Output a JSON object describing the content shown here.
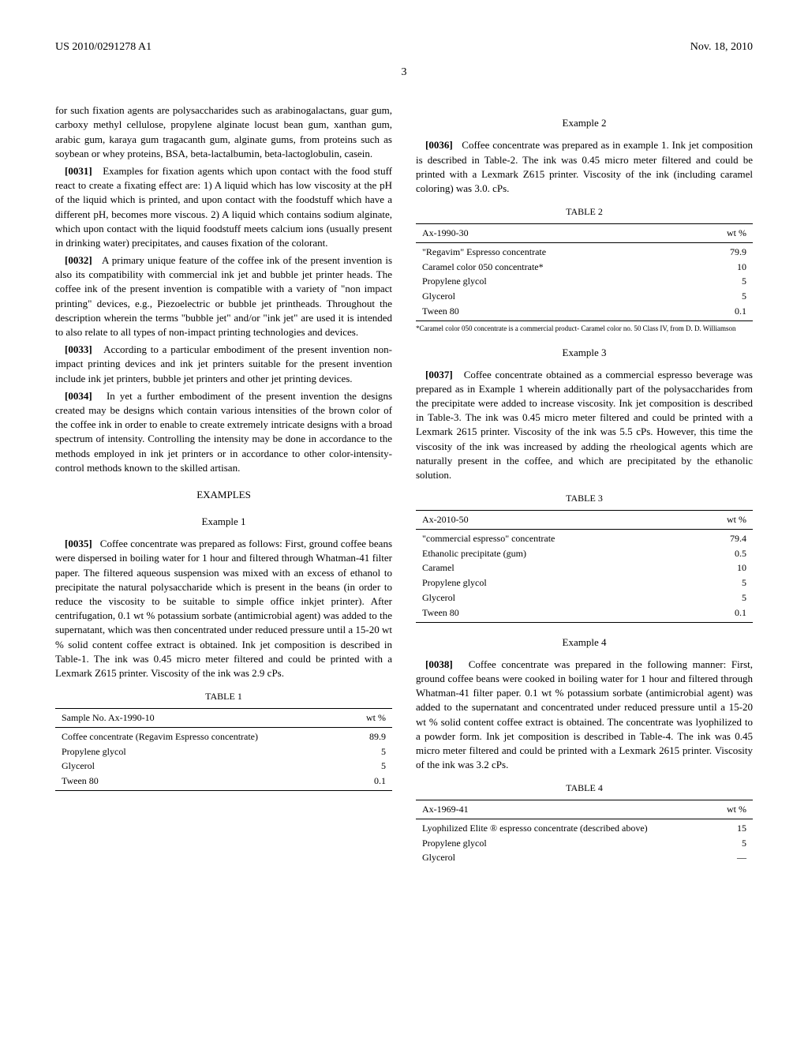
{
  "header": {
    "pub_number": "US 2010/0291278 A1",
    "date": "Nov. 18, 2010"
  },
  "page_number": "3",
  "col1": {
    "p30_cont": "for such fixation agents are polysaccharides such as arabinogalactans, guar gum, carboxy methyl cellulose, propylene alginate locust bean gum, xanthan gum, arabic gum, karaya gum tragacanth gum, alginate gums, from proteins such as soybean or whey proteins, BSA, beta-lactalbumin, beta-lactoglobulin, casein.",
    "p31_num": "[0031]",
    "p31": "Examples for fixation agents which upon contact with the food stuff react to create a fixating effect are: 1) A liquid which has low viscosity at the pH of the liquid which is printed, and upon contact with the foodstuff which have a different pH, becomes more viscous. 2) A liquid which contains sodium alginate, which upon contact with the liquid foodstuff meets calcium ions (usually present in drinking water) precipitates, and causes fixation of the colorant.",
    "p32_num": "[0032]",
    "p32": "A primary unique feature of the coffee ink of the present invention is also its compatibility with commercial ink jet and bubble jet printer heads. The coffee ink of the present invention is compatible with a variety of \"non impact printing\" devices, e.g., Piezoelectric or bubble jet printheads. Throughout the description wherein the terms \"bubble jet\" and/or \"ink jet\" are used it is intended to also relate to all types of non-impact printing technologies and devices.",
    "p33_num": "[0033]",
    "p33": "According to a particular embodiment of the present invention non-impact printing devices and ink jet printers suitable for the present invention include ink jet printers, bubble jet printers and other jet printing devices.",
    "p34_num": "[0034]",
    "p34": "In yet a further embodiment of the present invention the designs created may be designs which contain various intensities of the brown color of the coffee ink in order to enable to create extremely intricate designs with a broad spectrum of intensity. Controlling the intensity may be done in accordance to the methods employed in ink jet printers or in accordance to other color-intensity-control methods known to the skilled artisan.",
    "examples_heading": "EXAMPLES",
    "ex1_heading": "Example 1",
    "p35_num": "[0035]",
    "p35": "Coffee concentrate was prepared as follows: First, ground coffee beans were dispersed in boiling water for 1 hour and filtered through Whatman-41 filter paper. The filtered aqueous suspension was mixed with an excess of ethanol to precipitate the natural polysaccharide which is present in the beans (in order to reduce the viscosity to be suitable to simple office inkjet printer). After centrifugation, 0.1 wt % potassium sorbate (antimicrobial agent) was added to the supernatant, which was then concentrated under reduced pressure until a 15-20 wt % solid content coffee extract is obtained. Ink jet composition is described in Table-1. The ink was 0.45 micro meter filtered and could be printed with a Lexmark Z615 printer. Viscosity of the ink was 2.9 cPs.",
    "table1_label": "TABLE 1",
    "table1_header": [
      "Sample No. Ax-1990-10",
      "wt %"
    ],
    "table1_rows": [
      [
        "Coffee concentrate (Regavim Espresso concentrate)",
        "89.9"
      ],
      [
        "Propylene glycol",
        "5"
      ],
      [
        "Glycerol",
        "5"
      ],
      [
        "Tween 80",
        "0.1"
      ]
    ]
  },
  "col2": {
    "ex2_heading": "Example 2",
    "p36_num": "[0036]",
    "p36": "Coffee concentrate was prepared as in example 1. Ink jet composition is described in Table-2. The ink was 0.45 micro meter filtered and could be printed with a Lexmark Z615 printer. Viscosity of the ink (including caramel coloring) was 3.0. cPs.",
    "table2_label": "TABLE 2",
    "table2_header": [
      "Ax-1990-30",
      "wt %"
    ],
    "table2_rows": [
      [
        "\"Regavim\" Espresso concentrate",
        "79.9"
      ],
      [
        "Caramel color 050 concentrate*",
        "10"
      ],
      [
        "Propylene glycol",
        "5"
      ],
      [
        "Glycerol",
        "5"
      ],
      [
        "Tween 80",
        "0.1"
      ]
    ],
    "table2_footnote": "*Caramel color 050 concentrate is a commercial product- Caramel color no. 50 Class IV, from D. D. Williamson",
    "ex3_heading": "Example 3",
    "p37_num": "[0037]",
    "p37": "Coffee concentrate obtained as a commercial espresso beverage was prepared as in Example 1 wherein additionally part of the polysaccharides from the precipitate were added to increase viscosity. Ink jet composition is described in Table-3. The ink was 0.45 micro meter filtered and could be printed with a Lexmark 2615 printer. Viscosity of the ink was 5.5 cPs. However, this time the viscosity of the ink was increased by adding the rheological agents which are naturally present in the coffee, and which are precipitated by the ethanolic solution.",
    "table3_label": "TABLE 3",
    "table3_header": [
      "Ax-2010-50",
      "wt %"
    ],
    "table3_rows": [
      [
        "\"commercial espresso\" concentrate",
        "79.4"
      ],
      [
        "Ethanolic precipitate (gum)",
        "0.5"
      ],
      [
        "Caramel",
        "10"
      ],
      [
        "Propylene glycol",
        "5"
      ],
      [
        "Glycerol",
        "5"
      ],
      [
        "Tween 80",
        "0.1"
      ]
    ],
    "ex4_heading": "Example 4",
    "p38_num": "[0038]",
    "p38": "Coffee concentrate was prepared in the following manner: First, ground coffee beans were cooked in boiling water for 1 hour and filtered through Whatman-41 filter paper. 0.1 wt % potassium sorbate (antimicrobial agent) was added to the supernatant and concentrated under reduced pressure until a 15-20 wt % solid content coffee extract is obtained. The concentrate was lyophilized to a powder form. Ink jet composition is described in Table-4. The ink was 0.45 micro meter filtered and could be printed with a Lexmark 2615 printer. Viscosity of the ink was 3.2 cPs.",
    "table4_label": "TABLE 4",
    "table4_header": [
      "Ax-1969-41",
      "wt %"
    ],
    "table4_rows": [
      [
        "Lyophilized Elite ® espresso concentrate (described above)",
        "15"
      ],
      [
        "Propylene glycol",
        "5"
      ],
      [
        "Glycerol",
        "—"
      ]
    ]
  }
}
